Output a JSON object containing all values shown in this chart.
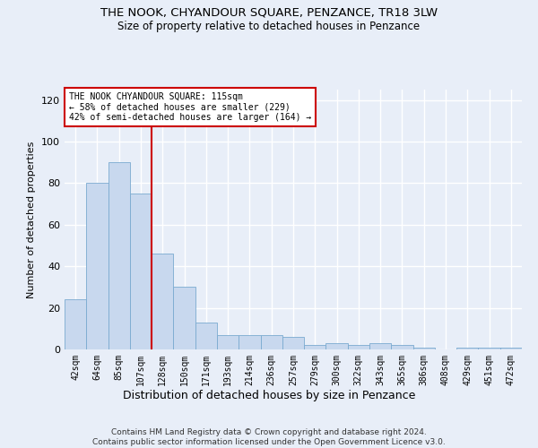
{
  "title": "THE NOOK, CHYANDOUR SQUARE, PENZANCE, TR18 3LW",
  "subtitle": "Size of property relative to detached houses in Penzance",
  "xlabel": "Distribution of detached houses by size in Penzance",
  "ylabel": "Number of detached properties",
  "categories": [
    "42sqm",
    "64sqm",
    "85sqm",
    "107sqm",
    "128sqm",
    "150sqm",
    "171sqm",
    "193sqm",
    "214sqm",
    "236sqm",
    "257sqm",
    "279sqm",
    "300sqm",
    "322sqm",
    "343sqm",
    "365sqm",
    "386sqm",
    "408sqm",
    "429sqm",
    "451sqm",
    "472sqm"
  ],
  "values": [
    24,
    80,
    90,
    75,
    46,
    30,
    13,
    7,
    7,
    7,
    6,
    2,
    3,
    2,
    3,
    2,
    1,
    0,
    1,
    1,
    1
  ],
  "bar_color": "#c8d8ee",
  "bar_edge_color": "#7aaad0",
  "property_line_x": 3.5,
  "annotation_text": "THE NOOK CHYANDOUR SQUARE: 115sqm\n← 58% of detached houses are smaller (229)\n42% of semi-detached houses are larger (164) →",
  "annotation_box_color": "#ffffff",
  "annotation_box_edge_color": "#cc0000",
  "vline_color": "#cc0000",
  "ylim": [
    0,
    125
  ],
  "yticks": [
    0,
    20,
    40,
    60,
    80,
    100,
    120
  ],
  "background_color": "#e8eef8",
  "grid_color": "#ffffff",
  "footer": "Contains HM Land Registry data © Crown copyright and database right 2024.\nContains public sector information licensed under the Open Government Licence v3.0."
}
